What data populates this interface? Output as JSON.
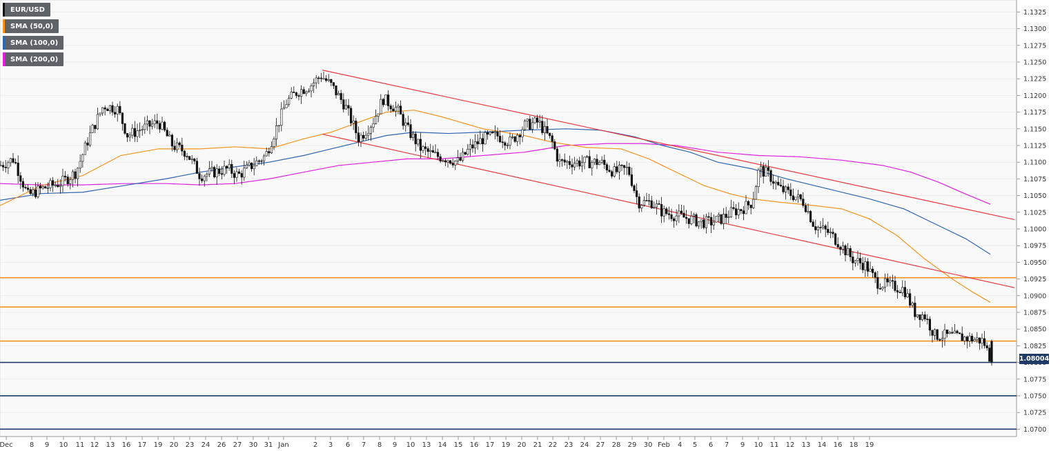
{
  "legend": [
    {
      "label": "EUR/USD",
      "color": "#111111"
    },
    {
      "label": "SMA (50,0)",
      "color": "#f7931e"
    },
    {
      "label": "SMA (100,0)",
      "color": "#2e64b0"
    },
    {
      "label": "SMA (200,0)",
      "color": "#e020e0"
    }
  ],
  "current_price": "1.08004",
  "chart_data": {
    "type": "candlestick",
    "symbol": "EUR/USD",
    "y_ticks": [
      "1.0700",
      "1.0725",
      "1.0750",
      "1.0775",
      "1.0800",
      "1.0825",
      "1.0850",
      "1.0875",
      "1.0900",
      "1.0925",
      "1.0950",
      "1.0975",
      "1.1000",
      "1.1025",
      "1.1050",
      "1.1075",
      "1.1100",
      "1.1125",
      "1.1150",
      "1.1175",
      "1.1200",
      "1.1225",
      "1.1250",
      "1.1275",
      "1.1300",
      "1.1325"
    ],
    "ylim": [
      1.0689,
      1.1343
    ],
    "x_ticks": [
      "Dec",
      "8",
      "9",
      "10",
      "11",
      "12",
      "13",
      "16",
      "17",
      "19",
      "20",
      "23",
      "24",
      "26",
      "27",
      "30",
      "31",
      "Jan",
      "2",
      "3",
      "6",
      "7",
      "8",
      "9",
      "10",
      "13",
      "14",
      "15",
      "16",
      "17",
      "19",
      "20",
      "21",
      "22",
      "23",
      "24",
      "27",
      "28",
      "29",
      "30",
      "Feb",
      "4",
      "5",
      "6",
      "7",
      "9",
      "10",
      "11",
      "12",
      "13",
      "14",
      "16",
      "18",
      "19"
    ],
    "price_path": [
      [
        0,
        1.1095
      ],
      [
        20,
        1.1105
      ],
      [
        40,
        1.105
      ],
      [
        60,
        1.106
      ],
      [
        90,
        1.107
      ],
      [
        110,
        1.1085
      ],
      [
        130,
        1.114
      ],
      [
        150,
        1.1185
      ],
      [
        170,
        1.118
      ],
      [
        185,
        1.114
      ],
      [
        205,
        1.115
      ],
      [
        230,
        1.116
      ],
      [
        250,
        1.1125
      ],
      [
        270,
        1.1115
      ],
      [
        290,
        1.108
      ],
      [
        310,
        1.1085
      ],
      [
        330,
        1.109
      ],
      [
        345,
        1.108
      ],
      [
        365,
        1.1095
      ],
      [
        385,
        1.111
      ],
      [
        400,
        1.115
      ],
      [
        415,
        1.119
      ],
      [
        430,
        1.1205
      ],
      [
        450,
        1.1215
      ],
      [
        465,
        1.123
      ],
      [
        480,
        1.1215
      ],
      [
        500,
        1.1185
      ],
      [
        520,
        1.1135
      ],
      [
        540,
        1.116
      ],
      [
        555,
        1.1195
      ],
      [
        575,
        1.118
      ],
      [
        590,
        1.115
      ],
      [
        610,
        1.112
      ],
      [
        630,
        1.111
      ],
      [
        650,
        1.1105
      ],
      [
        665,
        1.11
      ],
      [
        680,
        1.112
      ],
      [
        700,
        1.1135
      ],
      [
        720,
        1.114
      ],
      [
        740,
        1.113
      ],
      [
        760,
        1.1155
      ],
      [
        780,
        1.116
      ],
      [
        800,
        1.113
      ],
      [
        810,
        1.11
      ],
      [
        830,
        1.11
      ],
      [
        850,
        1.11
      ],
      [
        870,
        1.11
      ],
      [
        890,
        1.1085
      ],
      [
        910,
        1.109
      ],
      [
        925,
        1.104
      ],
      [
        945,
        1.104
      ],
      [
        960,
        1.1025
      ],
      [
        980,
        1.102
      ],
      [
        1000,
        1.1015
      ],
      [
        1015,
        1.101
      ],
      [
        1030,
        1.101
      ],
      [
        1045,
        1.1015
      ],
      [
        1060,
        1.1025
      ],
      [
        1075,
        1.103
      ],
      [
        1090,
        1.104
      ],
      [
        1100,
        1.109
      ],
      [
        1115,
        1.108
      ],
      [
        1130,
        1.106
      ],
      [
        1150,
        1.105
      ],
      [
        1165,
        1.104
      ],
      [
        1180,
        1.1005
      ],
      [
        1200,
        1.0995
      ],
      [
        1215,
        1.098
      ],
      [
        1235,
        1.0955
      ],
      [
        1255,
        1.0945
      ],
      [
        1270,
        1.092
      ],
      [
        1290,
        1.0915
      ],
      [
        1310,
        1.091
      ],
      [
        1325,
        1.0875
      ],
      [
        1340,
        1.087
      ],
      [
        1355,
        1.084
      ],
      [
        1370,
        1.084
      ],
      [
        1390,
        1.0838
      ],
      [
        1410,
        1.0835
      ],
      [
        1425,
        1.0832
      ],
      [
        1437,
        1.08
      ]
    ],
    "sma_50": [
      [
        0,
        1.1035
      ],
      [
        60,
        1.1065
      ],
      [
        120,
        1.108
      ],
      [
        175,
        1.111
      ],
      [
        230,
        1.112
      ],
      [
        290,
        1.112
      ],
      [
        340,
        1.1123
      ],
      [
        390,
        1.112
      ],
      [
        440,
        1.1135
      ],
      [
        480,
        1.1145
      ],
      [
        520,
        1.116
      ],
      [
        560,
        1.1175
      ],
      [
        600,
        1.1178
      ],
      [
        640,
        1.1168
      ],
      [
        700,
        1.115
      ],
      [
        760,
        1.114
      ],
      [
        800,
        1.113
      ],
      [
        850,
        1.1122
      ],
      [
        900,
        1.112
      ],
      [
        940,
        1.1105
      ],
      [
        980,
        1.1085
      ],
      [
        1020,
        1.1065
      ],
      [
        1060,
        1.1052
      ],
      [
        1090,
        1.1045
      ],
      [
        1130,
        1.104
      ],
      [
        1180,
        1.1035
      ],
      [
        1220,
        1.103
      ],
      [
        1260,
        1.1015
      ],
      [
        1300,
        1.099
      ],
      [
        1340,
        1.0955
      ],
      [
        1380,
        1.0925
      ],
      [
        1410,
        1.0905
      ],
      [
        1435,
        1.089
      ]
    ],
    "sma_100": [
      [
        0,
        1.1043
      ],
      [
        60,
        1.1053
      ],
      [
        120,
        1.1055
      ],
      [
        180,
        1.1065
      ],
      [
        240,
        1.1075
      ],
      [
        290,
        1.1085
      ],
      [
        340,
        1.1093
      ],
      [
        390,
        1.11
      ],
      [
        440,
        1.111
      ],
      [
        480,
        1.112
      ],
      [
        520,
        1.113
      ],
      [
        560,
        1.114
      ],
      [
        600,
        1.1145
      ],
      [
        650,
        1.1143
      ],
      [
        700,
        1.1145
      ],
      [
        760,
        1.1148
      ],
      [
        820,
        1.115
      ],
      [
        870,
        1.1148
      ],
      [
        920,
        1.1138
      ],
      [
        960,
        1.1125
      ],
      [
        1000,
        1.1115
      ],
      [
        1040,
        1.11
      ],
      [
        1090,
        1.109
      ],
      [
        1140,
        1.1075
      ],
      [
        1200,
        1.106
      ],
      [
        1260,
        1.1045
      ],
      [
        1310,
        1.103
      ],
      [
        1360,
        1.1005
      ],
      [
        1400,
        1.0985
      ],
      [
        1435,
        1.0962
      ]
    ],
    "sma_200": [
      [
        0,
        1.1068
      ],
      [
        60,
        1.1066
      ],
      [
        120,
        1.1066
      ],
      [
        180,
        1.1068
      ],
      [
        240,
        1.1068
      ],
      [
        290,
        1.1066
      ],
      [
        340,
        1.1068
      ],
      [
        390,
        1.1075
      ],
      [
        440,
        1.1085
      ],
      [
        490,
        1.1095
      ],
      [
        540,
        1.11
      ],
      [
        590,
        1.1105
      ],
      [
        640,
        1.1105
      ],
      [
        700,
        1.111
      ],
      [
        760,
        1.1115
      ],
      [
        820,
        1.1125
      ],
      [
        880,
        1.1128
      ],
      [
        930,
        1.1128
      ],
      [
        980,
        1.1125
      ],
      [
        1040,
        1.1115
      ],
      [
        1100,
        1.111
      ],
      [
        1160,
        1.1108
      ],
      [
        1220,
        1.1103
      ],
      [
        1280,
        1.1095
      ],
      [
        1320,
        1.1085
      ],
      [
        1360,
        1.107
      ],
      [
        1400,
        1.1052
      ],
      [
        1435,
        1.1037
      ]
    ],
    "trendlines": [
      {
        "color": "#e8383c",
        "from": [
          467,
          1.1238
        ],
        "to": [
          1470,
          1.1014
        ]
      },
      {
        "color": "#e8383c",
        "from": [
          467,
          1.1142
        ],
        "to": [
          1470,
          1.0912
        ]
      }
    ],
    "horizontal_levels": [
      {
        "value": 1.0927,
        "color": "#f7931e"
      },
      {
        "value": 1.0883,
        "color": "#f7931e"
      },
      {
        "value": 1.0832,
        "color": "#f7931e"
      },
      {
        "value": 1.08,
        "color": "#1f3a66"
      },
      {
        "value": 1.075,
        "color": "#1f3a66"
      },
      {
        "value": 1.07,
        "color": "#1f3a66"
      }
    ]
  }
}
